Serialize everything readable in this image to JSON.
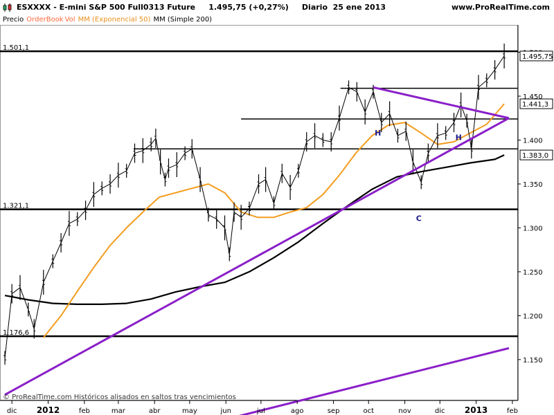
{
  "header": {
    "title": "ESXXXX - E-mini S&P 500 Full0313 Future     1.495,75 (+0,27%)     Diario  25 ene 2013",
    "site": "www.ProRealTime.com"
  },
  "legend": {
    "items": [
      {
        "label": "Precio",
        "color": "#000000"
      },
      {
        "label": "OrderBook",
        "color": "#ff6a3d"
      },
      {
        "label": "Vol",
        "color": "#ff6a3d"
      },
      {
        "label": "MM (Exponencial 50)",
        "color": "#f0a030"
      },
      {
        "label": "MM (Simple 200)",
        "color": "#000000"
      }
    ]
  },
  "footer": {
    "text": "© ProRealTime.com  Históricos alisados en saltos tras vencimientos"
  },
  "colors": {
    "price": "#000000",
    "ema50": "#f39c1f",
    "sma200": "#000000",
    "trendline": "#8a1fc8",
    "level": "#000000",
    "annotation": "#1a1a8c"
  },
  "chart_data": {
    "type": "line",
    "title": "ESXXXX - E-mini S&P 500 Full0313 Future",
    "last_value": "1.495,75",
    "ylim": [
      1105,
      1528
    ],
    "yticks": [
      1150,
      1200,
      1250,
      1300,
      1350,
      1400,
      1450,
      1500
    ],
    "ytick_labels": [
      "1.150",
      "1.200",
      "1.250",
      "1.300",
      "1.350",
      "1.400",
      "1.450",
      "1.500"
    ],
    "x_labels": [
      {
        "label": "dic",
        "x": "2011-12-01"
      },
      {
        "label": "2012",
        "x": "2012-01-01",
        "bold": true
      },
      {
        "label": "feb",
        "x": "2012-02-01"
      },
      {
        "label": "mar",
        "x": "2012-03-01"
      },
      {
        "label": "abr",
        "x": "2012-04-01"
      },
      {
        "label": "may",
        "x": "2012-05-01"
      },
      {
        "label": "jun",
        "x": "2012-06-01"
      },
      {
        "label": "jul",
        "x": "2012-07-01"
      },
      {
        "label": "ago",
        "x": "2012-08-01"
      },
      {
        "label": "sep",
        "x": "2012-09-01"
      },
      {
        "label": "oct",
        "x": "2012-10-01"
      },
      {
        "label": "nov",
        "x": "2012-11-01"
      },
      {
        "label": "dic",
        "x": "2012-12-01"
      },
      {
        "label": "2013",
        "x": "2013-01-01",
        "bold": true
      },
      {
        "label": "feb",
        "x": "2013-02-01"
      }
    ],
    "series": [
      {
        "name": "Precio",
        "style": "bars",
        "points": [
          [
            "2011-11-25",
            1152
          ],
          [
            "2011-12-01",
            1225
          ],
          [
            "2011-12-08",
            1232
          ],
          [
            "2011-12-15",
            1207
          ],
          [
            "2011-12-20",
            1185
          ],
          [
            "2011-12-28",
            1238
          ],
          [
            "2012-01-05",
            1262
          ],
          [
            "2012-01-12",
            1283
          ],
          [
            "2012-01-19",
            1305
          ],
          [
            "2012-01-26",
            1310
          ],
          [
            "2012-02-02",
            1320
          ],
          [
            "2012-02-09",
            1338
          ],
          [
            "2012-02-16",
            1345
          ],
          [
            "2012-02-23",
            1350
          ],
          [
            "2012-03-01",
            1360
          ],
          [
            "2012-03-08",
            1365
          ],
          [
            "2012-03-15",
            1385
          ],
          [
            "2012-03-22",
            1388
          ],
          [
            "2012-03-29",
            1395
          ],
          [
            "2012-04-02",
            1402
          ],
          [
            "2012-04-06",
            1375
          ],
          [
            "2012-04-10",
            1355
          ],
          [
            "2012-04-13",
            1368
          ],
          [
            "2012-04-20",
            1372
          ],
          [
            "2012-04-27",
            1385
          ],
          [
            "2012-05-03",
            1390
          ],
          [
            "2012-05-10",
            1355
          ],
          [
            "2012-05-17",
            1315
          ],
          [
            "2012-05-24",
            1310
          ],
          [
            "2012-05-31",
            1300
          ],
          [
            "2012-06-04",
            1270
          ],
          [
            "2012-06-08",
            1318
          ],
          [
            "2012-06-14",
            1312
          ],
          [
            "2012-06-21",
            1322
          ],
          [
            "2012-06-29",
            1350
          ],
          [
            "2012-07-05",
            1355
          ],
          [
            "2012-07-12",
            1328
          ],
          [
            "2012-07-19",
            1362
          ],
          [
            "2012-07-26",
            1346
          ],
          [
            "2012-08-02",
            1365
          ],
          [
            "2012-08-09",
            1398
          ],
          [
            "2012-08-16",
            1405
          ],
          [
            "2012-08-23",
            1400
          ],
          [
            "2012-08-30",
            1398
          ],
          [
            "2012-09-06",
            1425
          ],
          [
            "2012-09-14",
            1460
          ],
          [
            "2012-09-21",
            1455
          ],
          [
            "2012-09-28",
            1432
          ],
          [
            "2012-10-05",
            1455
          ],
          [
            "2012-10-12",
            1420
          ],
          [
            "2012-10-19",
            1430
          ],
          [
            "2012-10-26",
            1405
          ],
          [
            "2012-11-02",
            1410
          ],
          [
            "2012-11-08",
            1375
          ],
          [
            "2012-11-15",
            1352
          ],
          [
            "2012-11-21",
            1385
          ],
          [
            "2012-11-29",
            1405
          ],
          [
            "2012-12-06",
            1408
          ],
          [
            "2012-12-13",
            1420
          ],
          [
            "2012-12-19",
            1440
          ],
          [
            "2012-12-24",
            1422
          ],
          [
            "2012-12-28",
            1390
          ],
          [
            "2013-01-03",
            1460
          ],
          [
            "2013-01-10",
            1468
          ],
          [
            "2013-01-17",
            1480
          ],
          [
            "2013-01-25",
            1495.75
          ]
        ]
      },
      {
        "name": "MM (Exponencial 50)",
        "points": [
          [
            "2011-12-28",
            1175
          ],
          [
            "2012-01-12",
            1200
          ],
          [
            "2012-01-26",
            1228
          ],
          [
            "2012-02-09",
            1255
          ],
          [
            "2012-02-23",
            1280
          ],
          [
            "2012-03-08",
            1300
          ],
          [
            "2012-03-22",
            1318
          ],
          [
            "2012-04-05",
            1335
          ],
          [
            "2012-04-19",
            1340
          ],
          [
            "2012-05-03",
            1345
          ],
          [
            "2012-05-17",
            1350
          ],
          [
            "2012-05-31",
            1340
          ],
          [
            "2012-06-14",
            1318
          ],
          [
            "2012-06-28",
            1312
          ],
          [
            "2012-07-12",
            1312
          ],
          [
            "2012-07-26",
            1318
          ],
          [
            "2012-08-09",
            1323
          ],
          [
            "2012-08-23",
            1338
          ],
          [
            "2012-09-06",
            1360
          ],
          [
            "2012-09-20",
            1385
          ],
          [
            "2012-10-04",
            1405
          ],
          [
            "2012-10-18",
            1417
          ],
          [
            "2012-11-01",
            1420
          ],
          [
            "2012-11-15",
            1408
          ],
          [
            "2012-11-29",
            1395
          ],
          [
            "2012-12-13",
            1398
          ],
          [
            "2012-12-27",
            1408
          ],
          [
            "2013-01-10",
            1418
          ],
          [
            "2013-01-25",
            1441.3
          ]
        ]
      },
      {
        "name": "MM (Simple 200)",
        "points": [
          [
            "2011-11-25",
            1223
          ],
          [
            "2011-12-15",
            1218
          ],
          [
            "2012-01-05",
            1214
          ],
          [
            "2012-01-26",
            1213
          ],
          [
            "2012-02-16",
            1213
          ],
          [
            "2012-03-08",
            1214
          ],
          [
            "2012-03-29",
            1219
          ],
          [
            "2012-04-19",
            1227
          ],
          [
            "2012-05-10",
            1233
          ],
          [
            "2012-05-31",
            1238
          ],
          [
            "2012-06-21",
            1250
          ],
          [
            "2012-07-12",
            1266
          ],
          [
            "2012-08-02",
            1284
          ],
          [
            "2012-08-23",
            1305
          ],
          [
            "2012-09-13",
            1325
          ],
          [
            "2012-10-04",
            1344
          ],
          [
            "2012-10-25",
            1358
          ],
          [
            "2012-11-15",
            1364
          ],
          [
            "2012-12-06",
            1369
          ],
          [
            "2012-12-27",
            1374
          ],
          [
            "2013-01-17",
            1378
          ],
          [
            "2013-01-25",
            1383
          ]
        ]
      }
    ],
    "horizontal_levels": [
      {
        "value": 1501.1,
        "label": "1.501,1",
        "width": 2.5
      },
      {
        "value": 1459,
        "width": 1.5,
        "from": "2012-09-07"
      },
      {
        "value": 1424,
        "width": 1.5,
        "from": "2012-06-14"
      },
      {
        "value": 1390,
        "width": 1.5,
        "from": "2012-03-14"
      },
      {
        "value": 1321.1,
        "label": "1.321,1",
        "width": 2.5
      },
      {
        "value": 1176.6,
        "label": "1.176,6",
        "width": 2.5
      }
    ],
    "trendlines": [
      {
        "from": [
          "2011-11-25",
          1110
        ],
        "to": [
          "2013-01-29",
          1425
        ]
      },
      {
        "from": [
          "2012-10-05",
          1460
        ],
        "to": [
          "2013-01-29",
          1425
        ]
      },
      {
        "from": [
          "2012-06-10",
          1085
        ],
        "to": [
          "2013-01-29",
          1163
        ]
      }
    ],
    "annotations": [
      {
        "text": "H",
        "x": "2012-10-09",
        "y": 1405
      },
      {
        "text": "C",
        "x": "2012-11-13",
        "y": 1308
      },
      {
        "text": "H",
        "x": "2012-12-17",
        "y": 1400
      }
    ],
    "value_tags": [
      {
        "value": 1495.75,
        "label": "1.495,75"
      },
      {
        "value": 1441.3,
        "label": "1.441,3"
      },
      {
        "value": 1383.0,
        "label": "1.383,0"
      }
    ]
  }
}
